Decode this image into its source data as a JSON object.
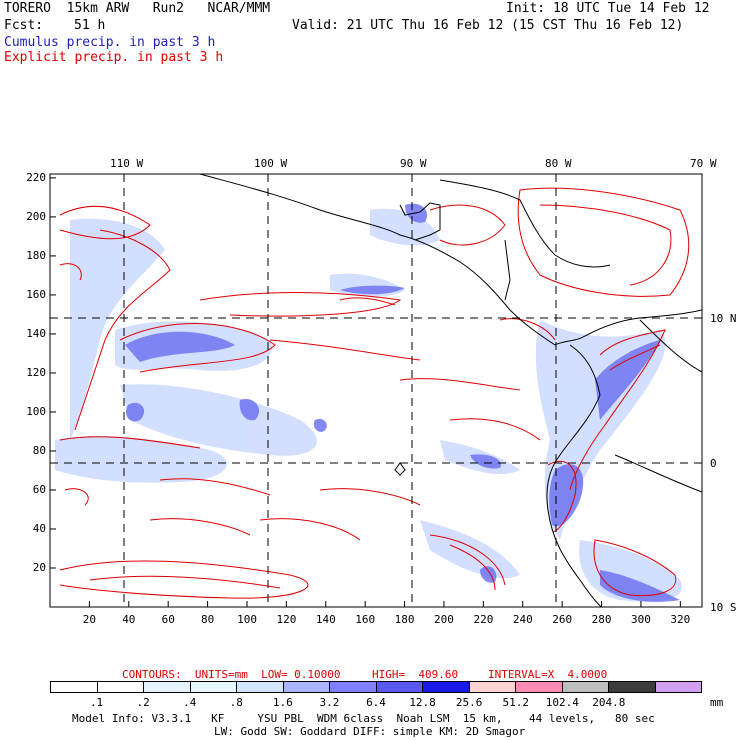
{
  "header": {
    "model": "TORERO  15km ARW   Run2   NCAR/MMM",
    "init": "Init: 18 UTC Tue 14 Feb 12",
    "fcst_label": "Fcst:",
    "fcst_value": "51 h",
    "valid": "Valid: 21 UTC Thu 16 Feb 12 (15 CST Thu 16 Feb 12)",
    "field1": "Cumulus precip. in past 3 h",
    "field2": "Explicit precip. in past 3 h"
  },
  "map": {
    "top_lon_labels": [
      "110 W",
      "100 W",
      "90 W",
      "80 W",
      "70 W"
    ],
    "right_lat_labels": [
      "10 N",
      "0",
      "10 S"
    ],
    "x_ticks": [
      "20",
      "40",
      "60",
      "80",
      "100",
      "120",
      "140",
      "160",
      "180",
      "200",
      "220",
      "240",
      "260",
      "280",
      "300",
      "320"
    ],
    "y_ticks": [
      "220",
      "200",
      "180",
      "160",
      "140",
      "120",
      "100",
      "80",
      "60",
      "40",
      "20"
    ]
  },
  "contours": {
    "label": "CONTOURS:  UNITS=mm  LOW= 0.10000",
    "high": "HIGH=  409.60",
    "interval": "INTERVAL=X  4.0000"
  },
  "legend": {
    "labels": [
      ".1",
      ".2",
      ".4",
      ".8",
      "1.6",
      "3.2",
      "6.4",
      "12.8",
      "25.6",
      "51.2",
      "102.4",
      "204.8"
    ],
    "unit": "mm",
    "colors": [
      "#ffffff",
      "#ffffff",
      "#e6f2ff",
      "#e8f8ff",
      "#d2e6ff",
      "#aab4ff",
      "#7f7fff",
      "#5a5af0",
      "#1a1ae6",
      "#ffd2d2",
      "#ff8cb4",
      "#bebebe",
      "#3c3c3c",
      "#d2a0f0"
    ]
  },
  "footer": {
    "line1": "Model Info: V3.3.1   KF     YSU PBL  WDM 6class  Noah LSM  15 km,    44 levels,   80 sec",
    "line2": "LW: Godd SW: Goddard DIFF: simple KM: 2D Smagor"
  }
}
